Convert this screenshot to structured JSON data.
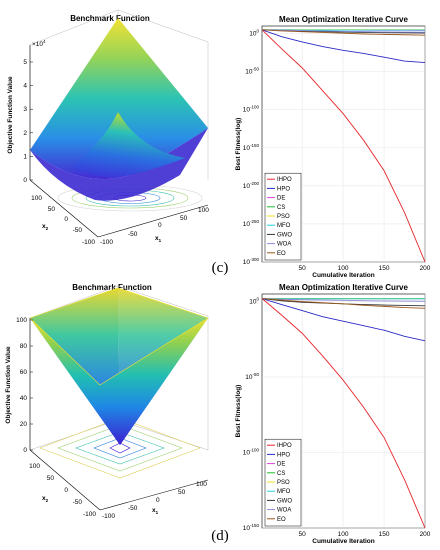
{
  "panels": [
    {
      "label": "(c)",
      "surface": {
        "title": "Benchmark Function",
        "zlabel": "Objective Function Value",
        "xlabel": "x",
        "xlabel_sub": "1",
        "ylabel": "x",
        "ylabel_sub": "2",
        "z_exponent_base": "×10",
        "z_exponent_power": "4",
        "z_ticks": [
          "0",
          "1",
          "2",
          "3",
          "4",
          "5"
        ],
        "x_ticks": [
          "-100",
          "-50",
          "0",
          "50",
          "100"
        ],
        "y_ticks": [
          "-100",
          "-50",
          "0",
          "50",
          "100"
        ],
        "colormap": [
          "#3b1fd0",
          "#1e88e5",
          "#21c0b0",
          "#8fd14f",
          "#f2e02a"
        ]
      }
    },
    {
      "label": "(d)",
      "surface": {
        "title": "Benchmark Function",
        "zlabel": "Objective Function Value",
        "xlabel": "x",
        "xlabel_sub": "1",
        "ylabel": "x",
        "ylabel_sub": "2",
        "z_ticks": [
          "0",
          "20",
          "40",
          "60",
          "80",
          "100"
        ],
        "x_ticks": [
          "-100",
          "-50",
          "0",
          "50",
          "100"
        ],
        "y_ticks": [
          "-100",
          "-50",
          "0",
          "50",
          "100"
        ],
        "colormap": [
          "#3b1fd0",
          "#1e88e5",
          "#21c0b0",
          "#8fd14f",
          "#f2e02a"
        ]
      }
    }
  ],
  "chart_data": [
    {
      "type": "line",
      "title": "Mean Optimization Iterative Curve",
      "xlabel": "Cumulative Iteration",
      "ylabel": "Best Fitness(log)",
      "yscale": "log",
      "xlim": [
        1,
        200
      ],
      "ylim_exp": [
        -300,
        10
      ],
      "x_ticks": [
        50,
        100,
        150,
        200
      ],
      "y_ticks": [
        {
          "base": "10",
          "exp": "0",
          "value": 0
        },
        {
          "base": "10",
          "exp": "-50",
          "value": -50
        },
        {
          "base": "10",
          "exp": "-100",
          "value": -100
        },
        {
          "base": "10",
          "exp": "-150",
          "value": -150
        },
        {
          "base": "10",
          "exp": "-200",
          "value": -200
        },
        {
          "base": "10",
          "exp": "-250",
          "value": -250
        },
        {
          "base": "10",
          "exp": "-300",
          "value": -300
        }
      ],
      "grid": true,
      "legend_position": "lower-left",
      "x": [
        1,
        25,
        50,
        75,
        100,
        125,
        150,
        175,
        200
      ],
      "series": [
        {
          "name": "IHPO",
          "color": "#e8262b",
          "log10_values": [
            5,
            -20,
            -45,
            -75,
            -105,
            -140,
            -180,
            -235,
            -300
          ]
        },
        {
          "name": "HPO",
          "color": "#2a2ac8",
          "log10_values": [
            5,
            -4,
            -11,
            -17,
            -22,
            -26,
            -31,
            -36,
            -38
          ]
        },
        {
          "name": "DE",
          "color": "#e040e0",
          "log10_values": [
            5,
            5,
            4.8,
            4.7,
            4.6,
            4.5,
            4.4,
            4.3,
            4.2
          ]
        },
        {
          "name": "CS",
          "color": "#1fbf2f",
          "log10_values": [
            5,
            5,
            5,
            5,
            5,
            5,
            5,
            5,
            5
          ]
        },
        {
          "name": "PSO",
          "color": "#f0e020",
          "log10_values": [
            5,
            4.9,
            4.9,
            4.9,
            4.9,
            4.9,
            4.9,
            4.9,
            4.9
          ]
        },
        {
          "name": "MFO",
          "color": "#22d0d8",
          "log10_values": [
            5,
            4.8,
            4.7,
            4.7,
            4.7,
            4.7,
            4.7,
            4.7,
            4.7
          ]
        },
        {
          "name": "GWO",
          "color": "#333333",
          "log10_values": [
            5,
            4,
            3,
            2.5,
            2,
            1.5,
            1.2,
            1,
            0.8
          ]
        },
        {
          "name": "WOA",
          "color": "#8a8ad8",
          "log10_values": [
            5,
            4.5,
            4,
            3.5,
            3,
            2.6,
            2.2,
            2,
            1.8
          ]
        },
        {
          "name": "EO",
          "color": "#9a5a20",
          "log10_values": [
            5,
            3.5,
            2.5,
            1.5,
            0.5,
            -0.5,
            -1,
            -1.5,
            -2
          ]
        }
      ]
    },
    {
      "type": "line",
      "title": "Mean Optimization Iterative Curve",
      "xlabel": "Cumulative Iteration",
      "ylabel": "Best Fitness(log)",
      "yscale": "log",
      "xlim": [
        1,
        200
      ],
      "ylim_exp": [
        -150,
        5
      ],
      "x_ticks": [
        50,
        100,
        150,
        200
      ],
      "y_ticks": [
        {
          "base": "10",
          "exp": "0",
          "value": 0
        },
        {
          "base": "10",
          "exp": "-50",
          "value": -50
        },
        {
          "base": "10",
          "exp": "-100",
          "value": -100
        },
        {
          "base": "10",
          "exp": "-150",
          "value": -150
        }
      ],
      "grid": true,
      "legend_position": "lower-left",
      "x": [
        1,
        25,
        50,
        75,
        100,
        125,
        150,
        175,
        200
      ],
      "series": [
        {
          "name": "IHPO",
          "color": "#e8262b",
          "log10_values": [
            2,
            -9,
            -21,
            -36,
            -52,
            -70,
            -90,
            -118,
            -150
          ]
        },
        {
          "name": "HPO",
          "color": "#2a2ac8",
          "log10_values": [
            2,
            -2,
            -6,
            -10,
            -13,
            -16,
            -19,
            -23,
            -26
          ]
        },
        {
          "name": "DE",
          "color": "#e040e0",
          "log10_values": [
            2,
            2,
            2,
            1.9,
            1.9,
            1.9,
            1.9,
            1.9,
            1.9
          ]
        },
        {
          "name": "CS",
          "color": "#1fbf2f",
          "log10_values": [
            2,
            2,
            2,
            2,
            2,
            2,
            2,
            2,
            2
          ]
        },
        {
          "name": "PSO",
          "color": "#f0e020",
          "log10_values": [
            2,
            1.9,
            1.9,
            1.9,
            1.9,
            1.9,
            1.9,
            1.9,
            1.9
          ]
        },
        {
          "name": "MFO",
          "color": "#22d0d8",
          "log10_values": [
            2,
            1.8,
            1.8,
            1.8,
            1.8,
            1.8,
            1.8,
            1.8,
            1.8
          ]
        },
        {
          "name": "GWO",
          "color": "#333333",
          "log10_values": [
            2,
            0.5,
            -0.5,
            -1,
            -1.5,
            -2,
            -2.3,
            -2.6,
            -2.8
          ]
        },
        {
          "name": "WOA",
          "color": "#8a8ad8",
          "log10_values": [
            2,
            1.5,
            1.2,
            1,
            0.8,
            0.6,
            0.4,
            0.3,
            0.2
          ]
        },
        {
          "name": "EO",
          "color": "#9a5a20",
          "log10_values": [
            2,
            1,
            0,
            -0.8,
            -1.5,
            -2.5,
            -3.2,
            -4,
            -4.5
          ]
        }
      ]
    }
  ]
}
